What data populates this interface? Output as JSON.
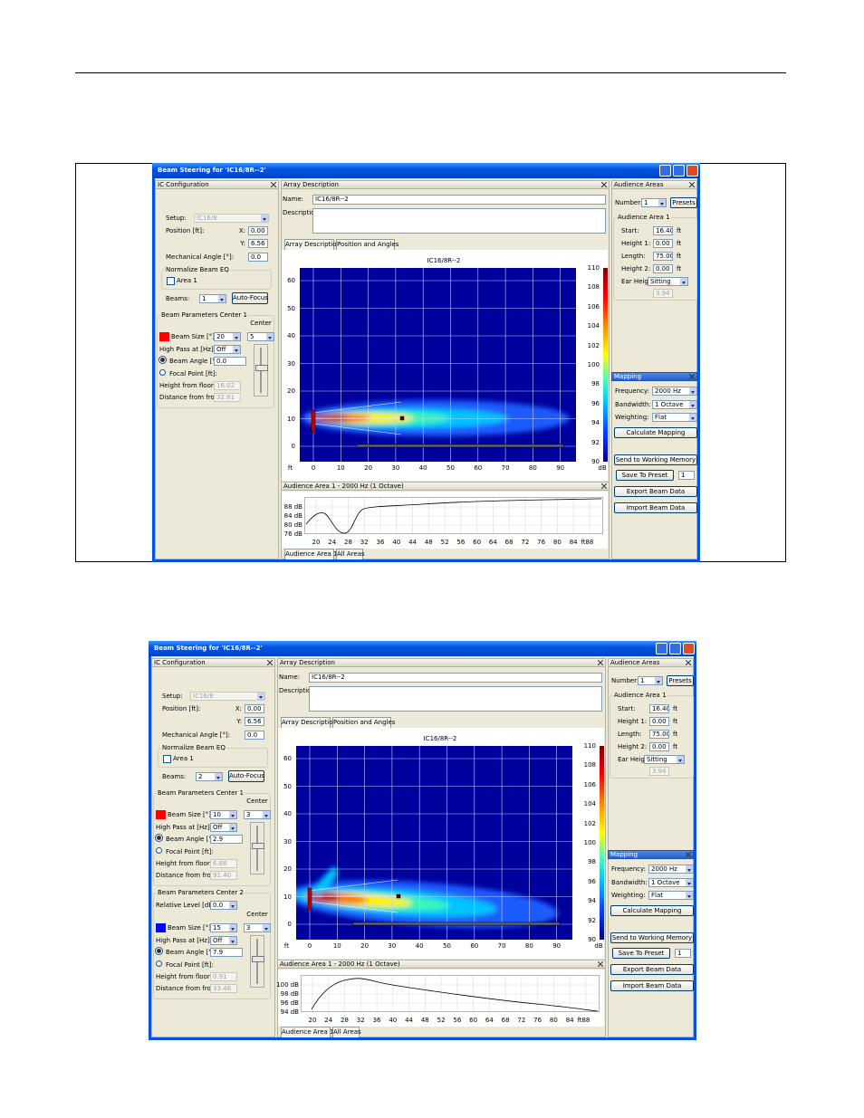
{
  "windows": [
    {
      "title": "Beam Steering for 'IC16/8R--2'",
      "ic": {
        "header": "IC Configuration",
        "setup_label": "Setup:",
        "setup": "IC16/8",
        "position_label": "Position [ft]:",
        "x_label": "X:",
        "x": "0.00",
        "y_label": "Y:",
        "y": "6.56",
        "mech_label": "Mechanical Angle [°]:",
        "mech": "0.0",
        "normalize_label": "Normalize Beam EQ",
        "area": "Area 1",
        "beams_label": "Beams:",
        "beams": "1",
        "autofocus": "Auto-Focus",
        "groups": [
          {
            "title": "Beam Parameters Center 1",
            "color": "#ff0000",
            "center_label": "Center",
            "size_label": "Beam Size [°]:",
            "size": "20",
            "center": "5",
            "highpass_label": "High Pass at [Hz]:",
            "highpass": "Off",
            "angle_label": "Beam Angle [°]:",
            "angle": "0.0",
            "focal_label": "Focal Point [ft]:",
            "height_label": "Height from floor:",
            "height": "16.02",
            "distance_label": "Distance from front:",
            "distance": "32.81"
          }
        ]
      },
      "array": {
        "header": "Array Description",
        "name_label": "Name:",
        "name": "IC16/8R--2",
        "description_label": "Description:",
        "tabs": [
          "Array Description",
          "Position and Angles"
        ]
      },
      "map": {
        "title": "IC16/8R--2",
        "xticks": [
          "0",
          "10",
          "20",
          "30",
          "40",
          "50",
          "60",
          "70",
          "80",
          "90"
        ],
        "x_unit": "ft",
        "yticks": [
          "0",
          "10",
          "20",
          "30",
          "40",
          "50",
          "60"
        ],
        "scale": [
          "110",
          "108",
          "106",
          "104",
          "102",
          "100",
          "98",
          "96",
          "94",
          "92",
          "90"
        ],
        "scale_unit": "dB"
      },
      "response": {
        "header": "Audience Area 1 - 2000 Hz (1 Octave)",
        "yticks": [
          "88 dB",
          "84 dB",
          "80 dB",
          "76 dB"
        ],
        "xticks": [
          "20",
          "24",
          "28",
          "32",
          "36",
          "40",
          "44",
          "48",
          "52",
          "56",
          "60",
          "64",
          "68",
          "72",
          "76",
          "80",
          "84",
          "88"
        ],
        "x_unit": "ft",
        "tabs": [
          "Audience Area 1",
          "All Areas"
        ]
      },
      "audience": {
        "header": "Audience Areas",
        "number_label": "Number:",
        "number": "1",
        "presets": "Presets",
        "group": "Audience Area 1",
        "rows": [
          {
            "label": "Start:",
            "value": "16.40",
            "unit": "ft"
          },
          {
            "label": "Height 1:",
            "value": "0.00",
            "unit": "ft"
          },
          {
            "label": "Length:",
            "value": "75.00",
            "unit": "ft"
          },
          {
            "label": "Height 2:",
            "value": "0.00",
            "unit": "ft"
          }
        ],
        "ear_label": "Ear Height:",
        "ear": "Sitting",
        "ear_value": "3.94"
      },
      "mapping": {
        "header": "Mapping",
        "rows": [
          {
            "label": "Frequency:",
            "value": "2000 Hz"
          },
          {
            "label": "Bandwidth:",
            "value": "1 Octave"
          },
          {
            "label": "Weighting:",
            "value": "Flat"
          }
        ],
        "calculate": "Calculate Mapping",
        "send": "Send to Working Memory",
        "save": "Save To Preset",
        "save_value": "1",
        "export": "Export Beam Data",
        "import": "Import Beam Data"
      }
    },
    {
      "title": "Beam Steering for 'IC16/8R--2'",
      "ic": {
        "header": "IC Configuration",
        "setup_label": "Setup:",
        "setup": "IC16/8",
        "position_label": "Position [ft]:",
        "x_label": "X:",
        "x": "0.00",
        "y_label": "Y:",
        "y": "6.56",
        "mech_label": "Mechanical Angle [°]:",
        "mech": "0.0",
        "normalize_label": "Normalize Beam EQ",
        "area": "Area 1",
        "beams_label": "Beams:",
        "beams": "2",
        "autofocus": "Auto-Focus",
        "groups": [
          {
            "title": "Beam Parameters Center 1",
            "color": "#ff0000",
            "center_label": "Center",
            "size_label": "Beam Size [°]:",
            "size": "10",
            "center": "3",
            "highpass_label": "High Pass at [Hz]:",
            "highpass": "Off",
            "angle_label": "Beam Angle [°]:",
            "angle": "2.9",
            "focal_label": "Focal Point [ft]:",
            "height_label": "Height from floor:",
            "height": "6.88",
            "distance_label": "Distance from front:",
            "distance": "91.40"
          },
          {
            "title": "Beam Parameters Center 2",
            "relative_label": "Relative Level [dB]:",
            "relative": "0.0",
            "color": "#0000ff",
            "center_label": "Center",
            "size_label": "Beam Size [°]:",
            "size": "15",
            "center": "3",
            "highpass_label": "High Pass at [Hz]:",
            "highpass": "Off",
            "angle_label": "Beam Angle [°]:",
            "angle": "7.9",
            "focal_label": "Focal Point [ft]:",
            "height_label": "Height from floor:",
            "height": "0.91",
            "distance_label": "Distance from front:",
            "distance": "33.46"
          }
        ]
      },
      "array": {
        "header": "Array Description",
        "name_label": "Name:",
        "name": "IC16/8R--2",
        "description_label": "Description:",
        "tabs": [
          "Array Description",
          "Position and Angles"
        ]
      },
      "map": {
        "title": "IC16/8R--2",
        "xticks": [
          "0",
          "10",
          "20",
          "30",
          "40",
          "50",
          "60",
          "70",
          "80",
          "90"
        ],
        "x_unit": "ft",
        "yticks": [
          "0",
          "10",
          "20",
          "30",
          "40",
          "50",
          "60"
        ],
        "scale": [
          "110",
          "108",
          "106",
          "104",
          "102",
          "100",
          "98",
          "96",
          "94",
          "92",
          "90"
        ],
        "scale_unit": "dB"
      },
      "response": {
        "header": "Audience Area 1 - 2000 Hz (1 Octave)",
        "yticks": [
          "100 dB",
          "98 dB",
          "96 dB",
          "94 dB"
        ],
        "xticks": [
          "20",
          "24",
          "28",
          "32",
          "36",
          "40",
          "44",
          "48",
          "52",
          "56",
          "60",
          "64",
          "68",
          "72",
          "76",
          "80",
          "84",
          "88"
        ],
        "x_unit": "ft",
        "tabs": [
          "Audience Area 1",
          "All Areas"
        ]
      },
      "audience": {
        "header": "Audience Areas",
        "number_label": "Number:",
        "number": "1",
        "presets": "Presets",
        "group": "Audience Area 1",
        "rows": [
          {
            "label": "Start:",
            "value": "16.40",
            "unit": "ft"
          },
          {
            "label": "Height 1:",
            "value": "0.00",
            "unit": "ft"
          },
          {
            "label": "Length:",
            "value": "75.00",
            "unit": "ft"
          },
          {
            "label": "Height 2:",
            "value": "0.00",
            "unit": "ft"
          }
        ],
        "ear_label": "Ear Height:",
        "ear": "Sitting",
        "ear_value": "3.94"
      },
      "mapping": {
        "header": "Mapping",
        "rows": [
          {
            "label": "Frequency:",
            "value": "2000 Hz"
          },
          {
            "label": "Bandwidth:",
            "value": "1 Octave"
          },
          {
            "label": "Weighting:",
            "value": "Flat"
          }
        ],
        "calculate": "Calculate Mapping",
        "send": "Send to Working Memory",
        "save": "Save To Preset",
        "save_value": "1",
        "export": "Export Beam Data",
        "import": "Import Beam Data"
      }
    }
  ]
}
